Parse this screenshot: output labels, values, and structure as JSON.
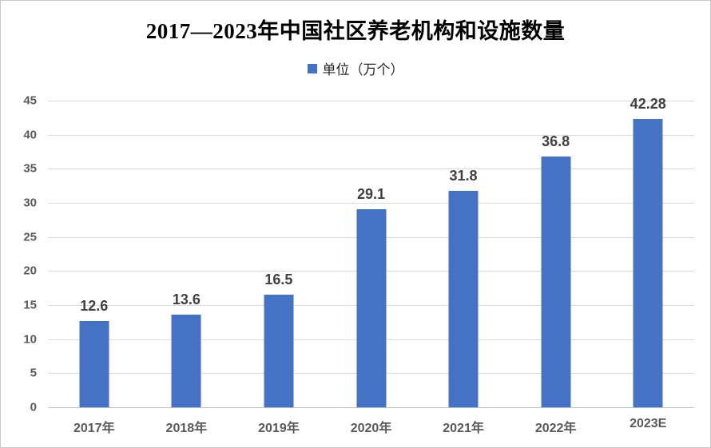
{
  "chart_data": {
    "type": "bar",
    "title": "2017—2023年中国社区养老机构和设施数量",
    "legend": "单位（万个）",
    "legend_position": "top",
    "categories": [
      "2017年",
      "2018年",
      "2019年",
      "2020年",
      "2021年",
      "2022年",
      "2023E"
    ],
    "values": [
      12.6,
      13.6,
      16.5,
      29.1,
      31.8,
      36.8,
      42.28
    ],
    "data_labels": [
      "12.6",
      "13.6",
      "16.5",
      "29.1",
      "31.8",
      "36.8",
      "42.28"
    ],
    "xlabel": "",
    "ylabel": "",
    "ylim": [
      0,
      45
    ],
    "yticks": [
      0,
      5,
      10,
      15,
      20,
      25,
      30,
      35,
      40,
      45
    ],
    "grid": true,
    "colors": {
      "bar": "#4472C4",
      "gridline": "#D9D9D9",
      "axis_line": "#BFBFBF",
      "tick_label": "#595959",
      "data_label": "#404040",
      "title": "#000000"
    }
  }
}
